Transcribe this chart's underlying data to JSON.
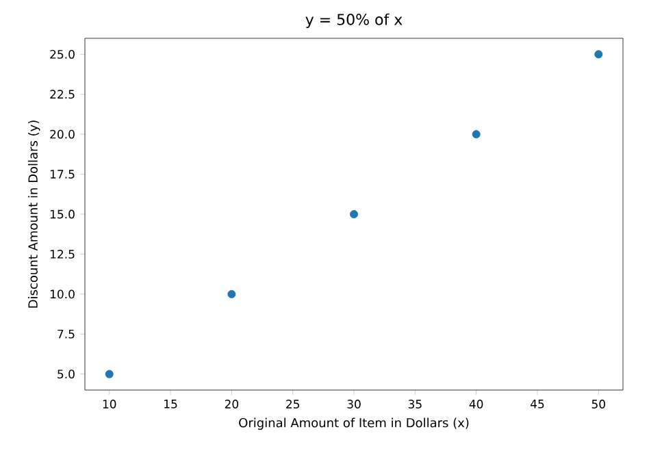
{
  "chart_data": {
    "type": "scatter",
    "title": "y = 50% of x",
    "xlabel": "Original Amount of Item in Dollars (x)",
    "ylabel": "Discount Amount in Dollars (y)",
    "x": [
      10,
      20,
      30,
      40,
      50
    ],
    "values": [
      5,
      10,
      15,
      20,
      25
    ],
    "color": "#1f77b4",
    "marker": "circle",
    "xlim": [
      8,
      52
    ],
    "xticks": [
      10,
      15,
      20,
      25,
      30,
      35,
      40,
      45,
      50
    ],
    "ylim": [
      4,
      26
    ],
    "yticks": [
      {
        "value": 5,
        "label": "5.0"
      },
      {
        "value": 7.5,
        "label": "7.5"
      },
      {
        "value": 10,
        "label": "10.0"
      },
      {
        "value": 12.5,
        "label": "12.5"
      },
      {
        "value": 15,
        "label": "15.0"
      },
      {
        "value": 17.5,
        "label": "17.5"
      },
      {
        "value": 20,
        "label": "20.0"
      },
      {
        "value": 22.5,
        "label": "22.5"
      },
      {
        "value": 25,
        "label": "25.0"
      }
    ]
  }
}
